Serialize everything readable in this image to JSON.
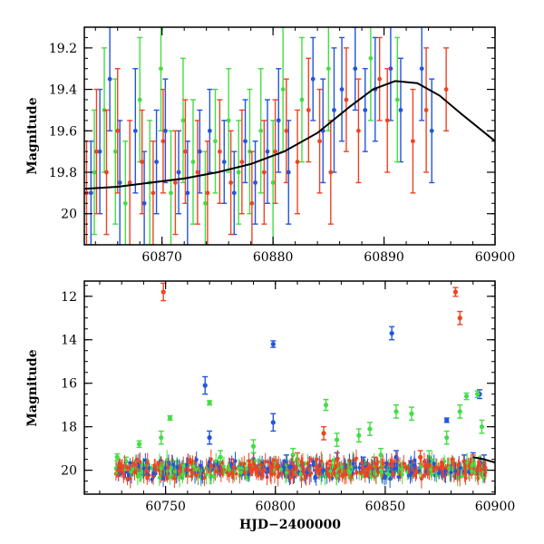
{
  "chart_data": [
    {
      "type": "scatter",
      "panel": "top",
      "title": "",
      "xlabel": "",
      "ylabel": "Magnitude",
      "xlim": [
        60863,
        60900
      ],
      "ylim": [
        20.15,
        19.1
      ],
      "y_inverted": true,
      "xticks": [
        60870,
        60880,
        60890,
        60900
      ],
      "yticks": [
        19.2,
        19.4,
        19.6,
        19.8,
        20
      ],
      "ytick_labels": [
        "19.2",
        "19.4",
        "19.6",
        "19.8",
        "20"
      ],
      "model_curve": {
        "color": "#000000",
        "x": [
          60863,
          60866,
          60869,
          60872,
          60875,
          60878,
          60881,
          60884,
          60887,
          60889,
          60891,
          60893,
          60895,
          60897,
          60900
        ],
        "y": [
          19.88,
          19.87,
          19.85,
          19.83,
          19.8,
          19.76,
          19.7,
          19.61,
          19.48,
          19.4,
          19.36,
          19.37,
          19.43,
          19.52,
          19.65
        ]
      },
      "series": [
        {
          "color": "#2255dd",
          "points": [
            {
              "x": 60863.6,
              "y": 19.9,
              "err": 0.25
            },
            {
              "x": 60864.4,
              "y": 19.7,
              "err": 0.3
            },
            {
              "x": 60865.3,
              "y": 19.35,
              "err": 0.25
            },
            {
              "x": 60866.2,
              "y": 19.85,
              "err": 0.3
            },
            {
              "x": 60867.6,
              "y": 19.6,
              "err": 0.3
            },
            {
              "x": 60868.4,
              "y": 19.95,
              "err": 0.25
            },
            {
              "x": 60869.5,
              "y": 19.75,
              "err": 0.25
            },
            {
              "x": 60870.3,
              "y": 19.6,
              "err": 0.25
            },
            {
              "x": 60871.5,
              "y": 19.8,
              "err": 0.2
            },
            {
              "x": 60872.3,
              "y": 19.9,
              "err": 0.25
            },
            {
              "x": 60873.4,
              "y": 19.7,
              "err": 0.2
            },
            {
              "x": 60874.3,
              "y": 19.6,
              "err": 0.2
            },
            {
              "x": 60875.6,
              "y": 19.75,
              "err": 0.2
            },
            {
              "x": 60876.5,
              "y": 19.9,
              "err": 0.2
            },
            {
              "x": 60877.5,
              "y": 19.65,
              "err": 0.2
            },
            {
              "x": 60878.4,
              "y": 19.85,
              "err": 0.2
            },
            {
              "x": 60879.5,
              "y": 19.7,
              "err": 0.25
            },
            {
              "x": 60880.5,
              "y": 19.55,
              "err": 0.25
            },
            {
              "x": 60881.4,
              "y": 19.8,
              "err": 0.25
            },
            {
              "x": 60883.6,
              "y": 19.35,
              "err": 0.2
            },
            {
              "x": 60884.5,
              "y": 19.6,
              "err": 0.25
            },
            {
              "x": 60885.5,
              "y": 19.5,
              "err": 0.3
            },
            {
              "x": 60886.2,
              "y": 19.4,
              "err": 0.25
            },
            {
              "x": 60887.4,
              "y": 19.3,
              "err": 0.2
            },
            {
              "x": 60888.3,
              "y": 19.5,
              "err": 0.2
            },
            {
              "x": 60889.2,
              "y": 19.4,
              "err": 0.25
            },
            {
              "x": 60890.6,
              "y": 19.3,
              "err": 0.25
            },
            {
              "x": 60891.5,
              "y": 19.5,
              "err": 0.25
            },
            {
              "x": 60893.4,
              "y": 19.3,
              "err": 0.25
            },
            {
              "x": 60894.3,
              "y": 19.6,
              "err": 0.25
            }
          ]
        },
        {
          "color": "#44dd44",
          "points": [
            {
              "x": 60863.9,
              "y": 19.8,
              "err": 0.3
            },
            {
              "x": 60864.8,
              "y": 19.5,
              "err": 0.3
            },
            {
              "x": 60865.8,
              "y": 19.7,
              "err": 0.35
            },
            {
              "x": 60866.7,
              "y": 19.95,
              "err": 0.3
            },
            {
              "x": 60868.0,
              "y": 19.45,
              "err": 0.3
            },
            {
              "x": 60868.9,
              "y": 19.85,
              "err": 0.3
            },
            {
              "x": 60869.9,
              "y": 19.3,
              "err": 0.3
            },
            {
              "x": 60870.8,
              "y": 19.9,
              "err": 0.3
            },
            {
              "x": 60871.9,
              "y": 19.55,
              "err": 0.3
            },
            {
              "x": 60872.8,
              "y": 19.75,
              "err": 0.3
            },
            {
              "x": 60873.9,
              "y": 19.95,
              "err": 0.25
            },
            {
              "x": 60874.8,
              "y": 19.65,
              "err": 0.25
            },
            {
              "x": 60876.0,
              "y": 19.55,
              "err": 0.25
            },
            {
              "x": 60876.9,
              "y": 19.8,
              "err": 0.25
            },
            {
              "x": 60877.9,
              "y": 19.7,
              "err": 0.3
            },
            {
              "x": 60878.9,
              "y": 19.6,
              "err": 0.3
            },
            {
              "x": 60880.0,
              "y": 19.85,
              "err": 0.3
            },
            {
              "x": 60880.9,
              "y": 19.4,
              "err": 0.3
            },
            {
              "x": 60882.6,
              "y": 19.45,
              "err": 0.3
            },
            {
              "x": 60885.0,
              "y": 19.3,
              "err": 0.3
            },
            {
              "x": 60888.8,
              "y": 19.25,
              "err": 0.3
            },
            {
              "x": 60891.2,
              "y": 19.45,
              "err": 0.3
            }
          ]
        },
        {
          "color": "#ee4422",
          "points": [
            {
              "x": 60863.2,
              "y": 19.9,
              "err": 0.25
            },
            {
              "x": 60864.1,
              "y": 19.7,
              "err": 0.3
            },
            {
              "x": 60865.0,
              "y": 19.8,
              "err": 0.3
            },
            {
              "x": 60866.0,
              "y": 19.6,
              "err": 0.3
            },
            {
              "x": 60867.1,
              "y": 19.85,
              "err": 0.3
            },
            {
              "x": 60868.2,
              "y": 19.75,
              "err": 0.25
            },
            {
              "x": 60869.2,
              "y": 19.9,
              "err": 0.25
            },
            {
              "x": 60870.1,
              "y": 19.65,
              "err": 0.25
            },
            {
              "x": 60871.2,
              "y": 19.85,
              "err": 0.25
            },
            {
              "x": 60872.1,
              "y": 19.7,
              "err": 0.25
            },
            {
              "x": 60873.2,
              "y": 19.8,
              "err": 0.25
            },
            {
              "x": 60874.1,
              "y": 19.9,
              "err": 0.25
            },
            {
              "x": 60875.2,
              "y": 19.7,
              "err": 0.25
            },
            {
              "x": 60876.2,
              "y": 19.85,
              "err": 0.25
            },
            {
              "x": 60877.2,
              "y": 19.75,
              "err": 0.25
            },
            {
              "x": 60878.1,
              "y": 19.95,
              "err": 0.25
            },
            {
              "x": 60879.2,
              "y": 19.8,
              "err": 0.25
            },
            {
              "x": 60880.2,
              "y": 19.7,
              "err": 0.25
            },
            {
              "x": 60881.2,
              "y": 19.6,
              "err": 0.25
            },
            {
              "x": 60882.2,
              "y": 19.75,
              "err": 0.25
            },
            {
              "x": 60883.2,
              "y": 19.5,
              "err": 0.25
            },
            {
              "x": 60884.2,
              "y": 19.65,
              "err": 0.25
            },
            {
              "x": 60885.2,
              "y": 19.8,
              "err": 0.25
            },
            {
              "x": 60886.6,
              "y": 19.45,
              "err": 0.25
            },
            {
              "x": 60887.7,
              "y": 19.6,
              "err": 0.25
            },
            {
              "x": 60889.6,
              "y": 19.35,
              "err": 0.2
            },
            {
              "x": 60890.3,
              "y": 19.55,
              "err": 0.25
            },
            {
              "x": 60892.6,
              "y": 19.65,
              "err": 0.25
            },
            {
              "x": 60893.8,
              "y": 19.5,
              "err": 0.3
            },
            {
              "x": 60895.6,
              "y": 19.4,
              "err": 0.2
            }
          ]
        }
      ]
    },
    {
      "type": "scatter",
      "panel": "bottom",
      "title": "",
      "xlabel": "HJD−2400000",
      "ylabel": "Magnitude",
      "xlim": [
        60713,
        60900
      ],
      "ylim": [
        21.1,
        11.3
      ],
      "y_inverted": true,
      "xticks": [
        60750,
        60800,
        60850,
        60900
      ],
      "yticks": [
        12,
        14,
        16,
        18,
        20
      ],
      "ytick_labels": [
        "12",
        "14",
        "16",
        "18",
        "20"
      ],
      "model_curve": {
        "color": "#000000",
        "x": [
          60890,
          60895,
          60900
        ],
        "y": [
          19.4,
          19.5,
          19.65
        ]
      },
      "series": [
        {
          "color": "#2255dd",
          "points": [
            {
              "x": 60768,
              "y": 16.1,
              "err": 0.4
            },
            {
              "x": 60770,
              "y": 18.5,
              "err": 0.3
            },
            {
              "x": 60775,
              "y": 19.9,
              "err": 0.3
            },
            {
              "x": 60790,
              "y": 19.5,
              "err": 0.3
            },
            {
              "x": 60799,
              "y": 14.2,
              "err": 0.15
            },
            {
              "x": 60799,
              "y": 17.8,
              "err": 0.4
            },
            {
              "x": 60805,
              "y": 19.6,
              "err": 0.3
            },
            {
              "x": 60828,
              "y": 19.5,
              "err": 0.3
            },
            {
              "x": 60840,
              "y": 19.7,
              "err": 0.3
            },
            {
              "x": 60853,
              "y": 13.7,
              "err": 0.3
            },
            {
              "x": 60855,
              "y": 19.4,
              "err": 0.3
            },
            {
              "x": 60870,
              "y": 19.8,
              "err": 0.3
            },
            {
              "x": 60878,
              "y": 17.7,
              "err": 0.1
            },
            {
              "x": 60886,
              "y": 19.6,
              "err": 0.3
            },
            {
              "x": 60890,
              "y": 19.5,
              "err": 0.3
            },
            {
              "x": 60893,
              "y": 16.5,
              "err": 0.2
            },
            {
              "x": 60895,
              "y": 19.7,
              "err": 0.4
            }
          ]
        },
        {
          "color": "#44dd44",
          "points": [
            {
              "x": 60728,
              "y": 19.4,
              "err": 0.15
            },
            {
              "x": 60732,
              "y": 19.6,
              "err": 0.2
            },
            {
              "x": 60738,
              "y": 18.8,
              "err": 0.15
            },
            {
              "x": 60748,
              "y": 18.5,
              "err": 0.3
            },
            {
              "x": 60752,
              "y": 17.6,
              "err": 0.1
            },
            {
              "x": 60770,
              "y": 16.9,
              "err": 0.1
            },
            {
              "x": 60775,
              "y": 19.4,
              "err": 0.3
            },
            {
              "x": 60790,
              "y": 18.9,
              "err": 0.3
            },
            {
              "x": 60808,
              "y": 19.3,
              "err": 0.3
            },
            {
              "x": 60823,
              "y": 17.0,
              "err": 0.25
            },
            {
              "x": 60828,
              "y": 18.6,
              "err": 0.3
            },
            {
              "x": 60838,
              "y": 18.4,
              "err": 0.3
            },
            {
              "x": 60843,
              "y": 18.1,
              "err": 0.3
            },
            {
              "x": 60848,
              "y": 19.3,
              "err": 0.3
            },
            {
              "x": 60855,
              "y": 17.3,
              "err": 0.3
            },
            {
              "x": 60862,
              "y": 17.4,
              "err": 0.3
            },
            {
              "x": 60870,
              "y": 19.4,
              "err": 0.3
            },
            {
              "x": 60878,
              "y": 18.5,
              "err": 0.3
            },
            {
              "x": 60884,
              "y": 17.3,
              "err": 0.3
            },
            {
              "x": 60887,
              "y": 16.6,
              "err": 0.15
            },
            {
              "x": 60892,
              "y": 16.5,
              "err": 0.15
            },
            {
              "x": 60894,
              "y": 18.0,
              "err": 0.3
            }
          ]
        },
        {
          "color": "#ee4422",
          "points": [
            {
              "x": 60749,
              "y": 11.8,
              "err": 0.4
            },
            {
              "x": 60760,
              "y": 20.0,
              "err": 0.3
            },
            {
              "x": 60780,
              "y": 19.8,
              "err": 0.3
            },
            {
              "x": 60810,
              "y": 19.5,
              "err": 0.3
            },
            {
              "x": 60822,
              "y": 18.3,
              "err": 0.3
            },
            {
              "x": 60845,
              "y": 19.7,
              "err": 0.3
            },
            {
              "x": 60866,
              "y": 19.4,
              "err": 0.3
            },
            {
              "x": 60882,
              "y": 11.8,
              "err": 0.2
            },
            {
              "x": 60884,
              "y": 13.0,
              "err": 0.3
            },
            {
              "x": 60890,
              "y": 19.6,
              "err": 0.3
            }
          ]
        }
      ]
    }
  ]
}
